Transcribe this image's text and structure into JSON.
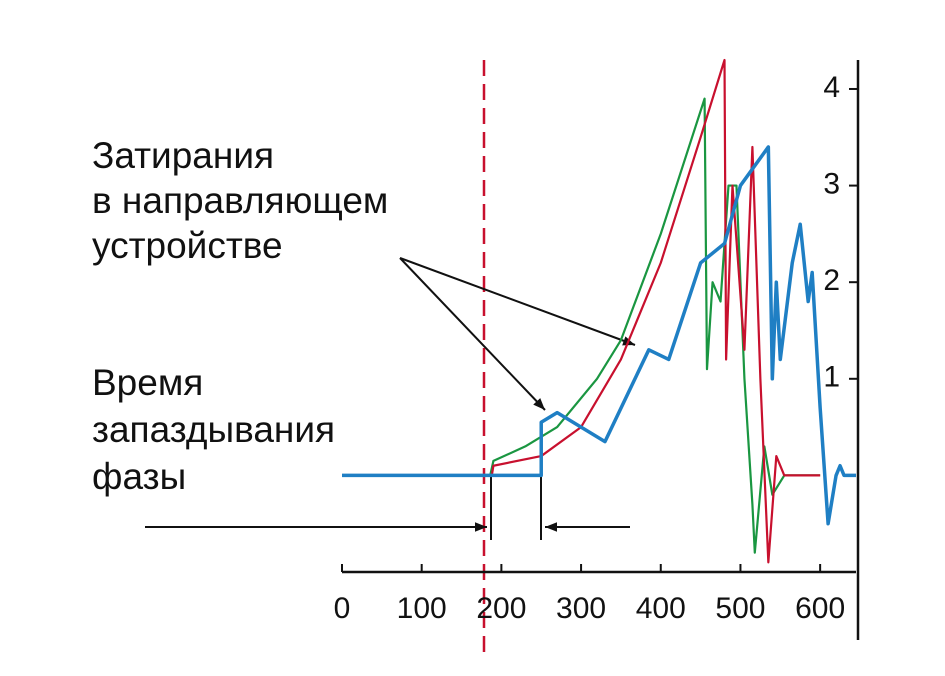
{
  "chart_data": {
    "type": "line",
    "annotations": {
      "rubbing": [
        "Затирания",
        "в направляющем",
        "устройстве"
      ],
      "delay": [
        "Время",
        "запаздывания",
        "фазы"
      ]
    },
    "series": [
      {
        "color": "#1a9641",
        "x": [
          186,
          190,
          230,
          270,
          320,
          350,
          400,
          455,
          458,
          465,
          475,
          485,
          495,
          505,
          515,
          518,
          530,
          540,
          555,
          600
        ],
        "values": [
          0,
          0.15,
          0.3,
          0.5,
          1.0,
          1.4,
          2.5,
          3.9,
          1.1,
          2.0,
          1.8,
          3.0,
          3.0,
          1.0,
          -0.3,
          -0.8,
          0.3,
          -0.2,
          0,
          0
        ]
      },
      {
        "color": "#c8102e",
        "x": [
          188,
          190,
          250,
          300,
          350,
          400,
          450,
          480,
          482,
          490,
          505,
          515,
          525,
          535,
          545,
          555,
          600
        ],
        "values": [
          0,
          0.1,
          0.2,
          0.5,
          1.2,
          2.2,
          3.5,
          4.3,
          1.2,
          3.0,
          1.3,
          3.4,
          1.0,
          -0.9,
          0.2,
          0,
          0
        ]
      },
      {
        "color": "#1f7fc4",
        "x": [
          0,
          250,
          250,
          270,
          330,
          385,
          410,
          450,
          480,
          500,
          535,
          540,
          545,
          550,
          565,
          575,
          585,
          590,
          600,
          610,
          620,
          625,
          630,
          645
        ],
        "values": [
          0,
          0,
          0.55,
          0.65,
          0.35,
          1.3,
          1.2,
          2.2,
          2.4,
          3.0,
          3.4,
          1.0,
          2.0,
          1.2,
          2.2,
          2.6,
          1.8,
          2.1,
          0.7,
          -0.5,
          0,
          0.1,
          0,
          0
        ]
      }
    ],
    "xlim": [
      0,
      645
    ],
    "xticks": [
      0,
      100,
      200,
      300,
      400,
      500,
      600
    ],
    "ylim": [
      -1,
      4.3
    ],
    "yticks": [
      1,
      2,
      3,
      4
    ]
  }
}
